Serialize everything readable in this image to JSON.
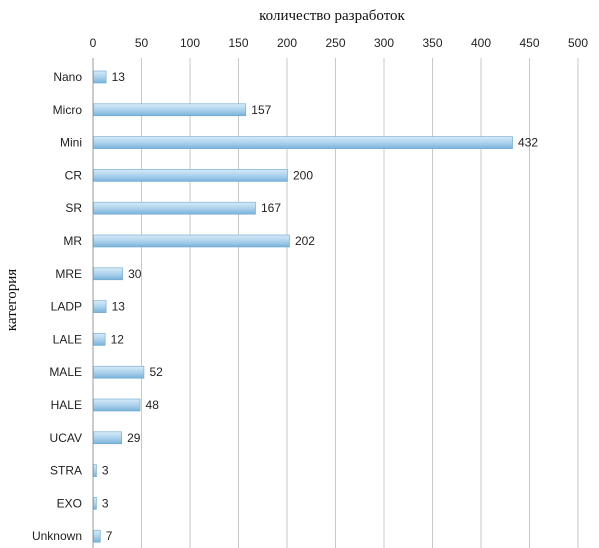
{
  "chart_data": {
    "type": "bar",
    "orientation": "horizontal",
    "xlabel": "количество разработок",
    "ylabel": "категория",
    "xlim": [
      0,
      500
    ],
    "xticks": [
      0,
      50,
      100,
      150,
      200,
      250,
      300,
      350,
      400,
      450,
      500
    ],
    "grid": true,
    "categories": [
      "Nano",
      "Micro",
      "Mini",
      "CR",
      "SR",
      "MR",
      "MRE",
      "LADP",
      "LALE",
      "MALE",
      "HALE",
      "UCAV",
      "STRA",
      "EXO",
      "Unknown"
    ],
    "values": [
      13,
      157,
      432,
      200,
      167,
      202,
      30,
      13,
      12,
      52,
      48,
      29,
      3,
      3,
      7
    ],
    "colors": {
      "bar_fill_top": "#cfe6f5",
      "bar_fill_bottom": "#7fb8de",
      "bar_stroke": "#6aa6cf"
    }
  }
}
